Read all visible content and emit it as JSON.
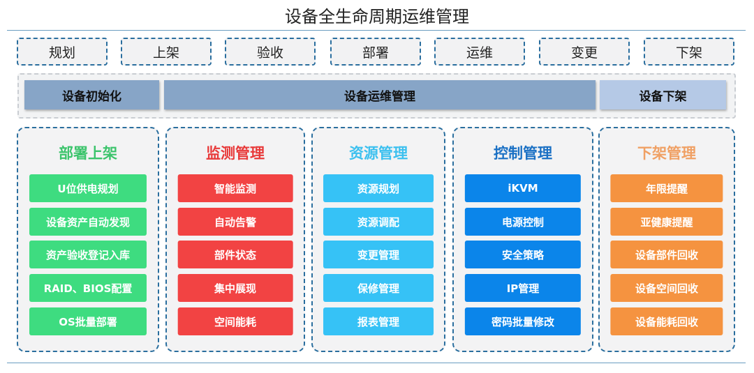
{
  "title": "设备全生命周期运维管理",
  "stages": [
    "规划",
    "上架",
    "验收",
    "部署",
    "运维",
    "变更",
    "下架"
  ],
  "phases": [
    {
      "label": "设备初始化",
      "color": "#87a5c7"
    },
    {
      "label": "设备运维管理",
      "color": "#87a5c7"
    },
    {
      "label": "设备下架",
      "color": "#b5c9e6"
    }
  ],
  "columns": [
    {
      "title": "部署上架",
      "title_color": "#3cc46c",
      "item_color": "#3edc80",
      "items": [
        "U位供电规划",
        "设备资产自动发现",
        "资产验收登记入库",
        "RAID、BIOS配置",
        "OS批量部署"
      ]
    },
    {
      "title": "监测管理",
      "title_color": "#e83a3a",
      "item_color": "#f24343",
      "items": [
        "智能监测",
        "自动告警",
        "部件状态",
        "集中展现",
        "空间能耗"
      ]
    },
    {
      "title": "资源管理",
      "title_color": "#3cc0ef",
      "item_color": "#36c2f6",
      "items": [
        "资源规划",
        "资源调配",
        "变更管理",
        "保修管理",
        "报表管理"
      ]
    },
    {
      "title": "控制管理",
      "title_color": "#1a70c4",
      "item_color": "#0b85ea",
      "items": [
        "iKVM",
        "电源控制",
        "安全策略",
        "IP管理",
        "密码批量修改"
      ]
    },
    {
      "title": "下架管理",
      "title_color": "#f0a064",
      "item_color": "#f59340",
      "items": [
        "年限提醒",
        "亚健康提醒",
        "设备部件回收",
        "设备空间回收",
        "设备能耗回收"
      ]
    }
  ]
}
